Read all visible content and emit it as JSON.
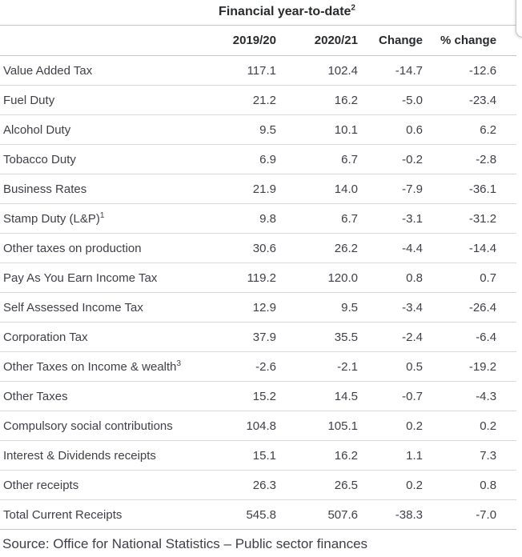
{
  "colors": {
    "text_primary": "#3f4049",
    "text_heading": "#282b2e",
    "row_line": "#d9d9d9",
    "section_line": "#c6c6c6",
    "background": "#ffffff"
  },
  "chart_data": {
    "type": "table",
    "title": "Financial year-to-date",
    "title_sup": "2",
    "columns": [
      "2019/20",
      "2020/21",
      "Change",
      "% change"
    ],
    "rows": [
      {
        "label": "Value Added Tax",
        "label_sup": "",
        "values": [
          "117.1",
          "102.4",
          "-14.7",
          "-12.6"
        ]
      },
      {
        "label": "Fuel Duty",
        "label_sup": "",
        "values": [
          "21.2",
          "16.2",
          "-5.0",
          "-23.4"
        ]
      },
      {
        "label": "Alcohol Duty",
        "label_sup": "",
        "values": [
          "9.5",
          "10.1",
          "0.6",
          "6.2"
        ]
      },
      {
        "label": "Tobacco Duty",
        "label_sup": "",
        "values": [
          "6.9",
          "6.7",
          "-0.2",
          "-2.8"
        ]
      },
      {
        "label": "Business Rates",
        "label_sup": "",
        "values": [
          "21.9",
          "14.0",
          "-7.9",
          "-36.1"
        ]
      },
      {
        "label": "Stamp Duty (L&P)",
        "label_sup": "1",
        "values": [
          "9.8",
          "6.7",
          "-3.1",
          "-31.2"
        ]
      },
      {
        "label": "Other taxes on production",
        "label_sup": "",
        "values": [
          "30.6",
          "26.2",
          "-4.4",
          "-14.4"
        ]
      },
      {
        "label": "Pay As You Earn Income Tax",
        "label_sup": "",
        "values": [
          "119.2",
          "120.0",
          "0.8",
          "0.7"
        ]
      },
      {
        "label": "Self Assessed Income Tax",
        "label_sup": "",
        "values": [
          "12.9",
          "9.5",
          "-3.4",
          "-26.4"
        ]
      },
      {
        "label": "Corporation Tax",
        "label_sup": "",
        "values": [
          "37.9",
          "35.5",
          "-2.4",
          "-6.4"
        ]
      },
      {
        "label": "Other Taxes on Income & wealth",
        "label_sup": "3",
        "values": [
          "-2.6",
          "-2.1",
          "0.5",
          "-19.2"
        ]
      },
      {
        "label": "Other Taxes",
        "label_sup": "",
        "values": [
          "15.2",
          "14.5",
          "-0.7",
          "-4.3"
        ]
      },
      {
        "label": "Compulsory social contributions",
        "label_sup": "",
        "values": [
          "104.8",
          "105.1",
          "0.2",
          "0.2"
        ]
      },
      {
        "label": "Interest & Dividends receipts",
        "label_sup": "",
        "values": [
          "15.1",
          "16.2",
          "1.1",
          "7.3"
        ]
      },
      {
        "label": "Other receipts",
        "label_sup": "",
        "values": [
          "26.3",
          "26.5",
          "0.2",
          "0.8"
        ]
      },
      {
        "label": "Total Current Receipts",
        "label_sup": "",
        "values": [
          "545.8",
          "507.6",
          "-38.3",
          "-7.0"
        ]
      }
    ],
    "source": "Source: Office for National Statistics – Public sector finances"
  }
}
